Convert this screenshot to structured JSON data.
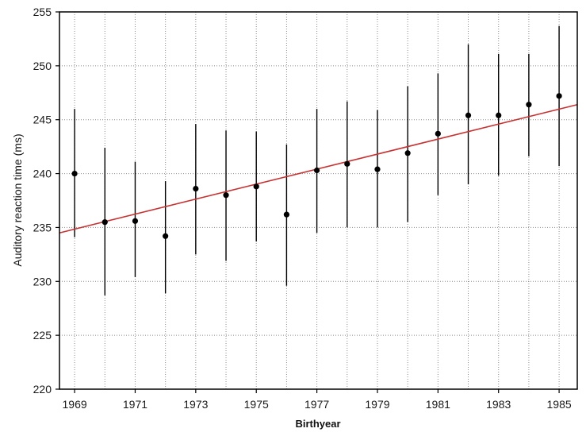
{
  "chart_data": {
    "type": "scatter",
    "title": "",
    "xlabel": "Birthyear",
    "ylabel": "Auditory reaction time (ms)",
    "xlim": [
      1968.5,
      1985.6
    ],
    "ylim": [
      220,
      255
    ],
    "x_ticks": [
      1969,
      1971,
      1973,
      1975,
      1977,
      1979,
      1981,
      1983,
      1985
    ],
    "y_ticks": [
      220,
      225,
      230,
      235,
      240,
      245,
      250,
      255
    ],
    "grid": true,
    "legend": "none",
    "series": [
      {
        "x": [
          1969,
          1970,
          1971,
          1972,
          1973,
          1974,
          1975,
          1976,
          1977,
          1978,
          1979,
          1980,
          1981,
          1982,
          1983,
          1984,
          1985
        ],
        "y": [
          240.0,
          235.5,
          235.6,
          234.2,
          238.6,
          238.0,
          238.8,
          236.2,
          240.3,
          240.9,
          240.4,
          241.9,
          243.7,
          245.4,
          245.4,
          246.4,
          247.2
        ],
        "error_low": [
          234.1,
          228.7,
          230.4,
          228.9,
          232.5,
          231.9,
          233.7,
          229.6,
          234.5,
          235.0,
          235.0,
          235.5,
          238.0,
          239.0,
          239.8,
          241.6,
          240.7
        ],
        "error_high": [
          246.0,
          242.4,
          241.1,
          239.3,
          244.6,
          244.0,
          243.9,
          242.7,
          246.0,
          246.7,
          245.9,
          248.1,
          249.3,
          252.0,
          251.1,
          251.1,
          253.7
        ]
      }
    ],
    "trend_line": {
      "x": [
        1968.5,
        1985.6
      ],
      "y": [
        234.5,
        246.4
      ]
    },
    "colors": {
      "points": "#000000",
      "error_bars": "#000000",
      "trend_line": "#c83232",
      "grid": "#8c8c8c",
      "frame": "#000000"
    }
  }
}
